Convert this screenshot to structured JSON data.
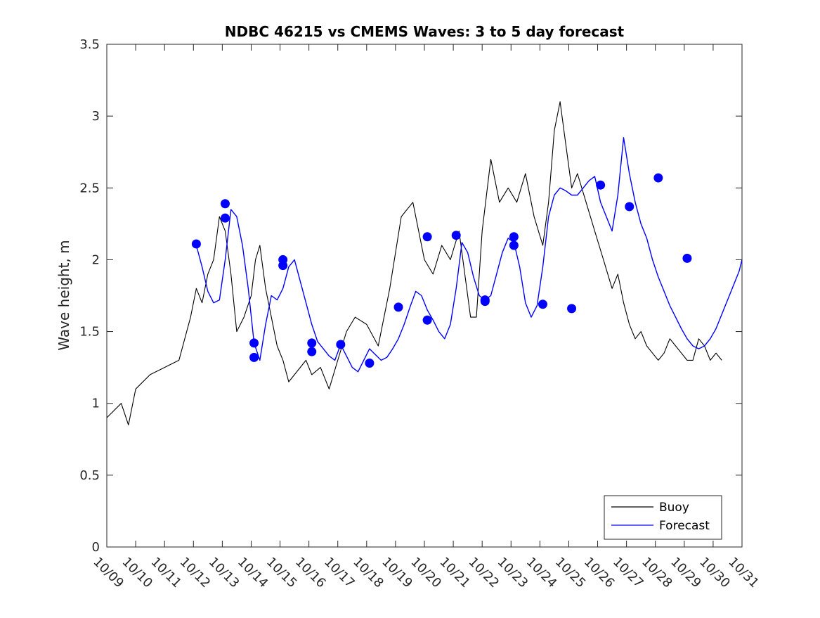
{
  "chart_data": {
    "type": "line",
    "title": "NDBC 46215 vs CMEMS Waves: 3 to 5 day forecast",
    "xlabel": "",
    "ylabel": "Wave height, m",
    "xlim": [
      0,
      22
    ],
    "ylim": [
      0,
      3.5
    ],
    "yticks": [
      0,
      0.5,
      1,
      1.5,
      2,
      2.5,
      3,
      3.5
    ],
    "ytick_labels": [
      "0",
      "0.5",
      "1",
      "1.5",
      "2",
      "2.5",
      "3",
      "3.5"
    ],
    "xtick_labels": [
      "10/09",
      "10/10",
      "10/11",
      "10/12",
      "10/13",
      "10/14",
      "10/15",
      "10/16",
      "10/17",
      "10/18",
      "10/19",
      "10/20",
      "10/21",
      "10/22",
      "10/23",
      "10/24",
      "10/25",
      "10/26",
      "10/27",
      "10/28",
      "10/29",
      "10/30",
      "10/31"
    ],
    "grid": false,
    "legend": {
      "location": "bottom-right",
      "entries": [
        "Buoy",
        "Forecast"
      ]
    },
    "colors": {
      "buoy": "#000000",
      "forecast": "#0000ff"
    },
    "series": [
      {
        "name": "Buoy",
        "color": "#000000",
        "x": [
          0,
          0.5,
          0.75,
          1,
          1.5,
          2,
          2.5,
          2.9,
          3.1,
          3.3,
          3.5,
          3.7,
          3.9,
          4.1,
          4.3,
          4.5,
          4.75,
          5,
          5.15,
          5.3,
          5.5,
          5.7,
          5.9,
          6.1,
          6.3,
          6.5,
          6.7,
          6.9,
          7.1,
          7.4,
          7.7,
          8,
          8.3,
          8.6,
          9,
          9.4,
          9.8,
          10.2,
          10.6,
          11,
          11.3,
          11.6,
          11.9,
          12.2,
          12.4,
          12.6,
          12.8,
          13,
          13.3,
          13.6,
          13.9,
          14.2,
          14.5,
          14.8,
          15.1,
          15.3,
          15.5,
          15.7,
          15.9,
          16.1,
          16.3,
          16.6,
          16.9,
          17.2,
          17.5,
          17.7,
          17.9,
          18.1,
          18.3,
          18.5,
          18.7,
          18.9,
          19.1,
          19.3,
          19.5,
          19.7,
          19.9,
          20.1,
          20.3,
          20.5,
          20.7,
          20.9,
          21.1,
          21.3
        ],
        "y": [
          0.9,
          1.0,
          0.85,
          1.1,
          1.2,
          1.25,
          1.3,
          1.6,
          1.8,
          1.7,
          1.9,
          2.0,
          2.3,
          2.2,
          1.9,
          1.5,
          1.6,
          1.75,
          2.0,
          2.1,
          1.8,
          1.6,
          1.4,
          1.3,
          1.15,
          1.2,
          1.25,
          1.3,
          1.2,
          1.25,
          1.1,
          1.3,
          1.5,
          1.6,
          1.55,
          1.4,
          1.8,
          2.3,
          2.4,
          2.0,
          1.9,
          2.1,
          2.0,
          2.2,
          1.9,
          1.6,
          1.6,
          2.2,
          2.7,
          2.4,
          2.5,
          2.4,
          2.6,
          2.3,
          2.1,
          2.4,
          2.9,
          3.1,
          2.8,
          2.5,
          2.6,
          2.4,
          2.2,
          2.0,
          1.8,
          1.9,
          1.7,
          1.55,
          1.45,
          1.5,
          1.4,
          1.35,
          1.3,
          1.35,
          1.45,
          1.4,
          1.35,
          1.3,
          1.3,
          1.45,
          1.4,
          1.3,
          1.35,
          1.3
        ]
      },
      {
        "name": "Forecast",
        "color": "#0000ff",
        "x": [
          3.1,
          3.3,
          3.5,
          3.7,
          3.9,
          4.1,
          4.3,
          4.5,
          4.7,
          4.9,
          5.1,
          5.3,
          5.5,
          5.7,
          5.9,
          6.1,
          6.3,
          6.5,
          6.7,
          6.9,
          7.1,
          7.3,
          7.5,
          7.7,
          7.9,
          8.1,
          8.3,
          8.5,
          8.7,
          8.9,
          9.1,
          9.3,
          9.5,
          9.7,
          9.9,
          10.1,
          10.3,
          10.5,
          10.7,
          10.9,
          11.1,
          11.3,
          11.5,
          11.7,
          11.9,
          12.1,
          12.3,
          12.5,
          12.7,
          12.9,
          13.1,
          13.3,
          13.5,
          13.7,
          13.9,
          14.1,
          14.3,
          14.5,
          14.7,
          14.9,
          15.1,
          15.3,
          15.5,
          15.7,
          15.9,
          16.1,
          16.3,
          16.5,
          16.7,
          16.9,
          17.1,
          17.3,
          17.5,
          17.7,
          17.9,
          18.1,
          18.3,
          18.5,
          18.7,
          18.9,
          19.1,
          19.3,
          19.5,
          19.7,
          19.9,
          20.1,
          20.3,
          20.5,
          20.7,
          20.9,
          21.1,
          21.3,
          21.5,
          21.7,
          21.9,
          22.0
        ],
        "y": [
          2.1,
          1.95,
          1.78,
          1.7,
          1.72,
          2.0,
          2.35,
          2.3,
          2.1,
          1.8,
          1.42,
          1.3,
          1.55,
          1.75,
          1.72,
          1.8,
          1.95,
          2.0,
          1.85,
          1.7,
          1.55,
          1.43,
          1.38,
          1.33,
          1.3,
          1.41,
          1.33,
          1.25,
          1.22,
          1.3,
          1.38,
          1.34,
          1.3,
          1.32,
          1.38,
          1.45,
          1.55,
          1.67,
          1.78,
          1.75,
          1.65,
          1.58,
          1.5,
          1.45,
          1.55,
          1.8,
          2.12,
          2.05,
          1.88,
          1.75,
          1.72,
          1.75,
          1.9,
          2.05,
          2.15,
          2.12,
          1.95,
          1.7,
          1.6,
          1.68,
          1.95,
          2.3,
          2.45,
          2.5,
          2.48,
          2.45,
          2.45,
          2.5,
          2.55,
          2.58,
          2.4,
          2.3,
          2.2,
          2.45,
          2.85,
          2.6,
          2.4,
          2.25,
          2.15,
          2.0,
          1.88,
          1.78,
          1.68,
          1.6,
          1.52,
          1.45,
          1.4,
          1.38,
          1.4,
          1.45,
          1.52,
          1.62,
          1.72,
          1.82,
          1.92,
          2.0
        ]
      }
    ],
    "markers": {
      "name": "Forecast initial points",
      "color": "#0000ff",
      "x": [
        3.1,
        4.1,
        4.1,
        5.1,
        5.1,
        6.1,
        6.1,
        7.1,
        7.1,
        8.1,
        9.1,
        10.1,
        11.1,
        11.1,
        12.1,
        13.1,
        13.1,
        14.1,
        14.1,
        15.1,
        16.1,
        17.1,
        18.1,
        19.1,
        20.1
      ],
      "y": [
        2.11,
        2.39,
        2.29,
        1.42,
        1.32,
        2.0,
        1.96,
        1.42,
        1.36,
        1.41,
        1.28,
        1.67,
        1.58,
        2.16,
        2.17,
        1.72,
        1.71,
        2.16,
        2.1,
        1.69,
        1.66,
        2.52,
        2.37,
        2.57,
        2.01
      ]
    }
  }
}
